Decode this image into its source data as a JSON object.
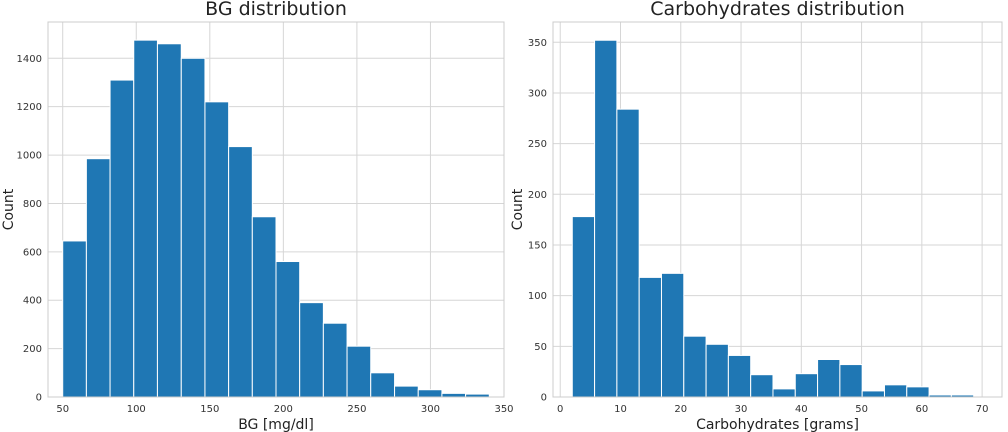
{
  "chart_data": [
    {
      "type": "bar",
      "title": "BG distribution",
      "xlabel": "BG [mg/dl]",
      "ylabel": "Count",
      "xlim": [
        40,
        350
      ],
      "ylim": [
        0,
        1550
      ],
      "xticks": [
        50,
        100,
        150,
        200,
        250,
        300,
        350
      ],
      "yticks": [
        0,
        200,
        400,
        600,
        800,
        1000,
        1200,
        1400
      ],
      "bin_edges": [
        50,
        66.1,
        82.2,
        98.3,
        114.4,
        130.6,
        146.7,
        162.8,
        178.9,
        195,
        211.1,
        227.2,
        243.3,
        259.4,
        275.6,
        291.7,
        307.8,
        323.9,
        340
      ],
      "values": [
        645,
        985,
        1310,
        1475,
        1460,
        1400,
        1220,
        1035,
        745,
        560,
        390,
        305,
        210,
        100,
        45,
        30,
        15,
        12
      ],
      "color": "#1f77b4",
      "grid": true
    },
    {
      "type": "bar",
      "title": "Carbohydrates distribution",
      "xlabel": "Carbohydrates [grams]",
      "ylabel": "Count",
      "xlim": [
        -1.2,
        73.3
      ],
      "ylim": [
        0,
        370
      ],
      "xticks": [
        0,
        10,
        20,
        30,
        40,
        50,
        60,
        70
      ],
      "yticks": [
        0,
        50,
        100,
        150,
        200,
        250,
        300,
        350
      ],
      "bin_edges": [
        2,
        5.7,
        9.4,
        13.1,
        16.8,
        20.5,
        24.2,
        27.9,
        31.6,
        35.3,
        39,
        42.7,
        46.4,
        50.1,
        53.8,
        57.5,
        61.2,
        64.9,
        68.6
      ],
      "values": [
        178,
        352,
        284,
        118,
        122,
        60,
        52,
        41,
        22,
        8,
        23,
        37,
        32,
        6,
        12,
        10,
        2,
        2
      ],
      "color": "#1f77b4",
      "grid": true
    }
  ]
}
